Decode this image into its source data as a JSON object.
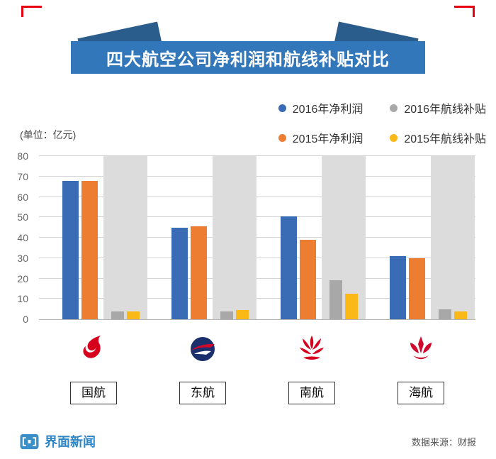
{
  "page": {
    "title_banner": "四大航空公司净利润和航线补贴对比",
    "unit_label": "(单位：亿元)",
    "brand": "界面新闻",
    "source_label": "数据来源：财报"
  },
  "colors": {
    "banner_blue": "#3377bb",
    "ribbon_dark_blue": "#2a5d8c",
    "accent_red": "#e60012",
    "logo_red": "#d6001c",
    "band_gray": "#dcdcdc",
    "brand_blue": "#2e86c6"
  },
  "chart_data": {
    "type": "bar",
    "title": "四大航空公司净利润和航线补贴对比",
    "unit": "亿元",
    "categories": [
      "国航",
      "东航",
      "南航",
      "海航"
    ],
    "series": [
      {
        "name": "2016年净利润",
        "color": "#3a6cb5",
        "values": [
          68,
          45,
          50.5,
          31
        ]
      },
      {
        "name": "2015年净利润",
        "color": "#ed7d31",
        "values": [
          68,
          45.5,
          39,
          30
        ]
      },
      {
        "name": "2016年航线补贴",
        "color": "#a8a8a8",
        "values": [
          4,
          4,
          19,
          5
        ]
      },
      {
        "name": "2015年航线补贴",
        "color": "#fbb917",
        "values": [
          4,
          4.5,
          12.5,
          4
        ]
      }
    ],
    "ylim": [
      0,
      80
    ],
    "yticks": [
      0,
      10,
      20,
      30,
      40,
      50,
      60,
      70,
      80
    ],
    "legend_order": [
      "2016年净利润",
      "2016年航线补贴",
      "2015年净利润",
      "2015年航线补贴"
    ],
    "legend_position": "top-right",
    "grid": true
  }
}
